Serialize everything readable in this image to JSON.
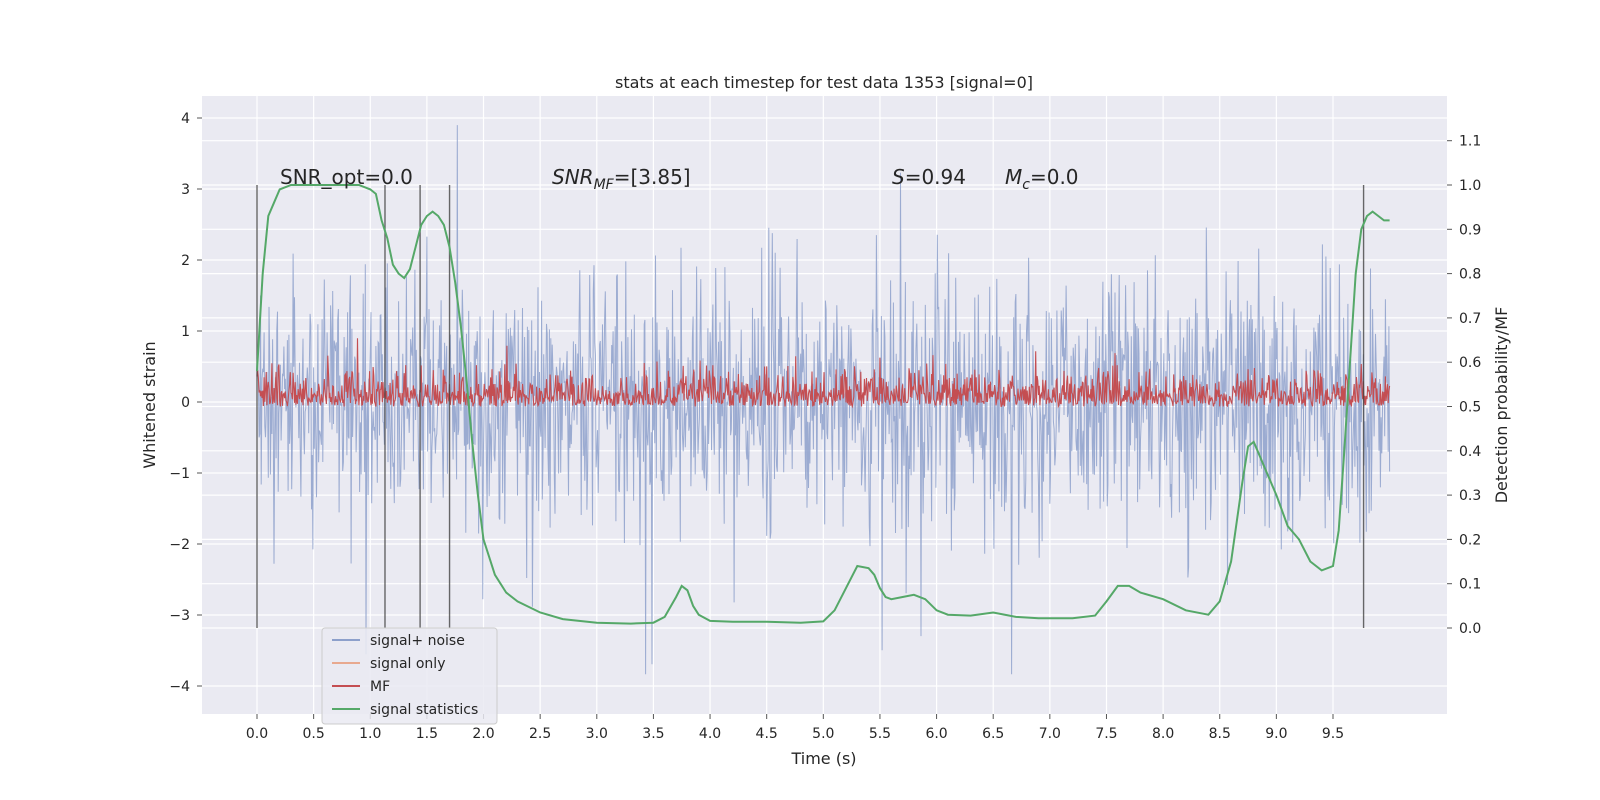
{
  "chart_data": {
    "type": "line",
    "title": "stats at each timestep for test data 1353 [signal=0]",
    "xlabel": "Time (s)",
    "ylabel_left": "Whitened strain",
    "ylabel_right": "Detection probability/MF",
    "xlim": [
      -0.48,
      10.5
    ],
    "ylim_left": [
      -4.45,
      4.3
    ],
    "ylim_right": [
      -0.2,
      1.2
    ],
    "x_ticks": [
      "0.0",
      "0.5",
      "1.0",
      "1.5",
      "2.0",
      "2.5",
      "3.0",
      "3.5",
      "4.0",
      "4.5",
      "5.0",
      "5.5",
      "6.0",
      "6.5",
      "7.0",
      "7.5",
      "8.0",
      "8.5",
      "9.0",
      "9.5"
    ],
    "y_ticks_left": [
      "4",
      "3",
      "2",
      "1",
      "0",
      "−1",
      "−2",
      "−3",
      "−4"
    ],
    "y_ticks_right": [
      "1.1",
      "1.0",
      "0.9",
      "0.8",
      "0.7",
      "0.6",
      "0.5",
      "0.4",
      "0.3",
      "0.2",
      "0.1",
      "0.0"
    ],
    "grid": true,
    "annotations": [
      {
        "text": "SNR_opt=0.0",
        "x": 0.2,
        "y": 3.05
      },
      {
        "text": "SNRₘF=[3.85]",
        "prefix": "SNR",
        "sub": "MF",
        "suffix": "=[3.85]",
        "x": 2.6,
        "y": 3.05
      },
      {
        "text": "S=0.94",
        "prefix": "S",
        "suffix": "=0.94",
        "x": 5.6,
        "y": 3.05
      },
      {
        "text": "Mc=0.0",
        "prefix": "M",
        "sub": "c",
        "suffix": "=0.0",
        "x": 6.6,
        "y": 3.05
      }
    ],
    "vertical_lines_x": [
      0.0,
      1.13,
      1.44,
      1.7,
      9.77
    ],
    "series": [
      {
        "name": "signal+ noise",
        "color": "#8da0cb",
        "noise_x_range": [
          0.0,
          10.0
        ],
        "typical_amplitude": 1.2,
        "max_extent": [
          -4.0,
          3.9
        ]
      },
      {
        "name": "signal only",
        "color": "#e8a98f",
        "values_note": "flat at 0"
      },
      {
        "name": "MF",
        "color": "#c44e52",
        "axis": "right",
        "noise_x_range": [
          0.0,
          10.0
        ],
        "baseline": 0.5,
        "band": [
          0.5,
          0.62
        ],
        "peaks_max": 0.67
      },
      {
        "name": "signal statistics",
        "color": "#55a868",
        "axis": "right",
        "x": [
          0.0,
          0.05,
          0.1,
          0.15,
          0.2,
          0.3,
          0.5,
          0.7,
          0.9,
          1.0,
          1.05,
          1.1,
          1.15,
          1.2,
          1.25,
          1.3,
          1.35,
          1.4,
          1.45,
          1.5,
          1.55,
          1.6,
          1.65,
          1.7,
          1.75,
          1.8,
          1.85,
          1.9,
          1.95,
          2.0,
          2.05,
          2.1,
          2.2,
          2.3,
          2.5,
          2.7,
          3.0,
          3.3,
          3.5,
          3.6,
          3.7,
          3.75,
          3.8,
          3.85,
          3.9,
          4.0,
          4.2,
          4.5,
          4.8,
          5.0,
          5.1,
          5.2,
          5.3,
          5.4,
          5.45,
          5.5,
          5.55,
          5.6,
          5.7,
          5.8,
          5.9,
          6.0,
          6.1,
          6.3,
          6.5,
          6.7,
          6.9,
          7.0,
          7.2,
          7.4,
          7.5,
          7.6,
          7.7,
          7.8,
          8.0,
          8.2,
          8.4,
          8.5,
          8.6,
          8.7,
          8.75,
          8.8,
          8.85,
          8.9,
          9.0,
          9.1,
          9.2,
          9.3,
          9.4,
          9.5,
          9.55,
          9.6,
          9.7,
          9.75,
          9.8,
          9.85,
          9.9,
          9.95,
          10.0
        ],
        "values": [
          0.58,
          0.8,
          0.93,
          0.96,
          0.99,
          1.0,
          1.0,
          1.0,
          1.0,
          0.99,
          0.98,
          0.92,
          0.88,
          0.82,
          0.8,
          0.79,
          0.81,
          0.86,
          0.91,
          0.93,
          0.94,
          0.93,
          0.91,
          0.86,
          0.78,
          0.68,
          0.56,
          0.42,
          0.3,
          0.2,
          0.16,
          0.12,
          0.08,
          0.06,
          0.035,
          0.02,
          0.012,
          0.01,
          0.012,
          0.025,
          0.07,
          0.095,
          0.085,
          0.05,
          0.03,
          0.016,
          0.014,
          0.014,
          0.012,
          0.015,
          0.04,
          0.09,
          0.14,
          0.135,
          0.12,
          0.09,
          0.07,
          0.065,
          0.07,
          0.075,
          0.065,
          0.04,
          0.03,
          0.028,
          0.035,
          0.025,
          0.022,
          0.022,
          0.022,
          0.028,
          0.06,
          0.095,
          0.095,
          0.08,
          0.065,
          0.04,
          0.03,
          0.06,
          0.15,
          0.33,
          0.41,
          0.42,
          0.39,
          0.36,
          0.3,
          0.23,
          0.2,
          0.15,
          0.13,
          0.14,
          0.22,
          0.4,
          0.8,
          0.9,
          0.93,
          0.94,
          0.93,
          0.92,
          0.92
        ]
      }
    ]
  },
  "legend": {
    "items": [
      {
        "label": "signal+ noise",
        "color": "#8da0cb"
      },
      {
        "label": "signal only",
        "color": "#e8a98f"
      },
      {
        "label": "MF",
        "color": "#c44e52"
      },
      {
        "label": "signal statistics",
        "color": "#55a868"
      }
    ]
  }
}
